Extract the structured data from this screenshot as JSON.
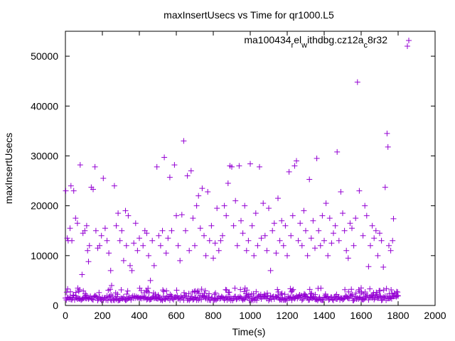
{
  "chart_data": {
    "type": "scatter",
    "title": "maxInsertUsecs vs Time for qr1000.L5",
    "xlabel": "Time(s)",
    "ylabel": "maxInsertUsecs",
    "xlim": [
      0,
      2000
    ],
    "ylim": [
      0,
      55000
    ],
    "xticks": [
      0,
      200,
      400,
      600,
      800,
      1000,
      1200,
      1400,
      1600,
      1800,
      2000
    ],
    "yticks": [
      0,
      10000,
      20000,
      30000,
      40000,
      50000
    ],
    "grid": false,
    "legend_position": "top-right",
    "marker": "+",
    "series": [
      {
        "name_parts": {
          "base": "ma100434",
          "sub1": "r",
          "mid": "el",
          "sub2": "w",
          "mid2": "ithdbg.cz12a",
          "sub3": "c",
          "end": "8r32"
        },
        "color": "#9400d3",
        "baseline": {
          "x_start": 0,
          "x_end": 1800,
          "x_step": 5,
          "y_min": 1000,
          "y_max": 2000
        },
        "points": [
          [
            2,
            23000
          ],
          [
            10,
            13500
          ],
          [
            15,
            13000
          ],
          [
            25,
            15500
          ],
          [
            30,
            24000
          ],
          [
            35,
            13000
          ],
          [
            45,
            23000
          ],
          [
            55,
            17500
          ],
          [
            65,
            16500
          ],
          [
            80,
            28200
          ],
          [
            90,
            6200
          ],
          [
            95,
            14500
          ],
          [
            105,
            15000
          ],
          [
            115,
            16000
          ],
          [
            120,
            11000
          ],
          [
            125,
            8800
          ],
          [
            130,
            12000
          ],
          [
            140,
            23700
          ],
          [
            150,
            23300
          ],
          [
            160,
            27800
          ],
          [
            165,
            15000
          ],
          [
            175,
            11500
          ],
          [
            185,
            12000
          ],
          [
            195,
            14000
          ],
          [
            205,
            25500
          ],
          [
            215,
            15500
          ],
          [
            225,
            13000
          ],
          [
            235,
            10500
          ],
          [
            245,
            7000
          ],
          [
            250,
            4000
          ],
          [
            265,
            24000
          ],
          [
            275,
            16000
          ],
          [
            285,
            18500
          ],
          [
            295,
            13000
          ],
          [
            305,
            15000
          ],
          [
            315,
            9000
          ],
          [
            325,
            19000
          ],
          [
            330,
            12000
          ],
          [
            340,
            18000
          ],
          [
            350,
            8000
          ],
          [
            360,
            7000
          ],
          [
            370,
            12500
          ],
          [
            380,
            16500
          ],
          [
            390,
            11000
          ],
          [
            400,
            13500
          ],
          [
            410,
            3000
          ],
          [
            420,
            12000
          ],
          [
            430,
            15000
          ],
          [
            440,
            14500
          ],
          [
            450,
            10000
          ],
          [
            460,
            5000
          ],
          [
            470,
            13000
          ],
          [
            480,
            8000
          ],
          [
            495,
            27800
          ],
          [
            505,
            14000
          ],
          [
            515,
            12000
          ],
          [
            525,
            15000
          ],
          [
            535,
            29700
          ],
          [
            545,
            10500
          ],
          [
            555,
            13500
          ],
          [
            565,
            25700
          ],
          [
            575,
            15000
          ],
          [
            590,
            28200
          ],
          [
            600,
            18000
          ],
          [
            610,
            12000
          ],
          [
            620,
            9000
          ],
          [
            630,
            18200
          ],
          [
            640,
            33000
          ],
          [
            650,
            15000
          ],
          [
            660,
            26000
          ],
          [
            670,
            11000
          ],
          [
            680,
            27000
          ],
          [
            690,
            17500
          ],
          [
            700,
            12000
          ],
          [
            710,
            20000
          ],
          [
            720,
            22000
          ],
          [
            730,
            15500
          ],
          [
            740,
            23500
          ],
          [
            750,
            14000
          ],
          [
            760,
            10000
          ],
          [
            770,
            22800
          ],
          [
            780,
            13000
          ],
          [
            790,
            16000
          ],
          [
            800,
            9500
          ],
          [
            810,
            12500
          ],
          [
            820,
            19500
          ],
          [
            830,
            11000
          ],
          [
            840,
            13000
          ],
          [
            850,
            14000
          ],
          [
            860,
            20000
          ],
          [
            870,
            18000
          ],
          [
            880,
            24500
          ],
          [
            890,
            28000
          ],
          [
            900,
            27800
          ],
          [
            910,
            16000
          ],
          [
            920,
            21000
          ],
          [
            930,
            12000
          ],
          [
            940,
            28000
          ],
          [
            950,
            17000
          ],
          [
            960,
            14500
          ],
          [
            970,
            20000
          ],
          [
            980,
            11000
          ],
          [
            990,
            13000
          ],
          [
            1000,
            28400
          ],
          [
            1010,
            16000
          ],
          [
            1020,
            10000
          ],
          [
            1030,
            18500
          ],
          [
            1040,
            12000
          ],
          [
            1050,
            27800
          ],
          [
            1060,
            13500
          ],
          [
            1070,
            20500
          ],
          [
            1080,
            14000
          ],
          [
            1090,
            11000
          ],
          [
            1100,
            19500
          ],
          [
            1110,
            7000
          ],
          [
            1120,
            15000
          ],
          [
            1130,
            16500
          ],
          [
            1140,
            10500
          ],
          [
            1150,
            21500
          ],
          [
            1160,
            13000
          ],
          [
            1170,
            17000
          ],
          [
            1180,
            12000
          ],
          [
            1190,
            16000
          ],
          [
            1200,
            10000
          ],
          [
            1210,
            26800
          ],
          [
            1220,
            14000
          ],
          [
            1230,
            18000
          ],
          [
            1240,
            28000
          ],
          [
            1250,
            29000
          ],
          [
            1260,
            13000
          ],
          [
            1270,
            16500
          ],
          [
            1280,
            12000
          ],
          [
            1290,
            19000
          ],
          [
            1300,
            15000
          ],
          [
            1310,
            10000
          ],
          [
            1320,
            25300
          ],
          [
            1330,
            13500
          ],
          [
            1340,
            17000
          ],
          [
            1350,
            11500
          ],
          [
            1360,
            29500
          ],
          [
            1370,
            15000
          ],
          [
            1380,
            12000
          ],
          [
            1390,
            18000
          ],
          [
            1400,
            13000
          ],
          [
            1410,
            20500
          ],
          [
            1420,
            10000
          ],
          [
            1430,
            17500
          ],
          [
            1440,
            12500
          ],
          [
            1450,
            14500
          ],
          [
            1460,
            16000
          ],
          [
            1470,
            30800
          ],
          [
            1480,
            13000
          ],
          [
            1490,
            22800
          ],
          [
            1500,
            18500
          ],
          [
            1510,
            15000
          ],
          [
            1520,
            11000
          ],
          [
            1530,
            9500
          ],
          [
            1540,
            16500
          ],
          [
            1550,
            15500
          ],
          [
            1560,
            12000
          ],
          [
            1570,
            17500
          ],
          [
            1580,
            44800
          ],
          [
            1590,
            23000
          ],
          [
            1600,
            3500
          ],
          [
            1610,
            14000
          ],
          [
            1620,
            20000
          ],
          [
            1630,
            18000
          ],
          [
            1640,
            7800
          ],
          [
            1650,
            12000
          ],
          [
            1660,
            16000
          ],
          [
            1670,
            13500
          ],
          [
            1680,
            15000
          ],
          [
            1690,
            10000
          ],
          [
            1700,
            14500
          ],
          [
            1710,
            13000
          ],
          [
            1720,
            7700
          ],
          [
            1730,
            23700
          ],
          [
            1740,
            34500
          ],
          [
            1745,
            31800
          ],
          [
            1750,
            12000
          ],
          [
            1760,
            11000
          ],
          [
            1770,
            13000
          ],
          [
            1775,
            17400
          ],
          [
            1780,
            2500
          ],
          [
            1850,
            52000
          ]
        ]
      }
    ]
  }
}
